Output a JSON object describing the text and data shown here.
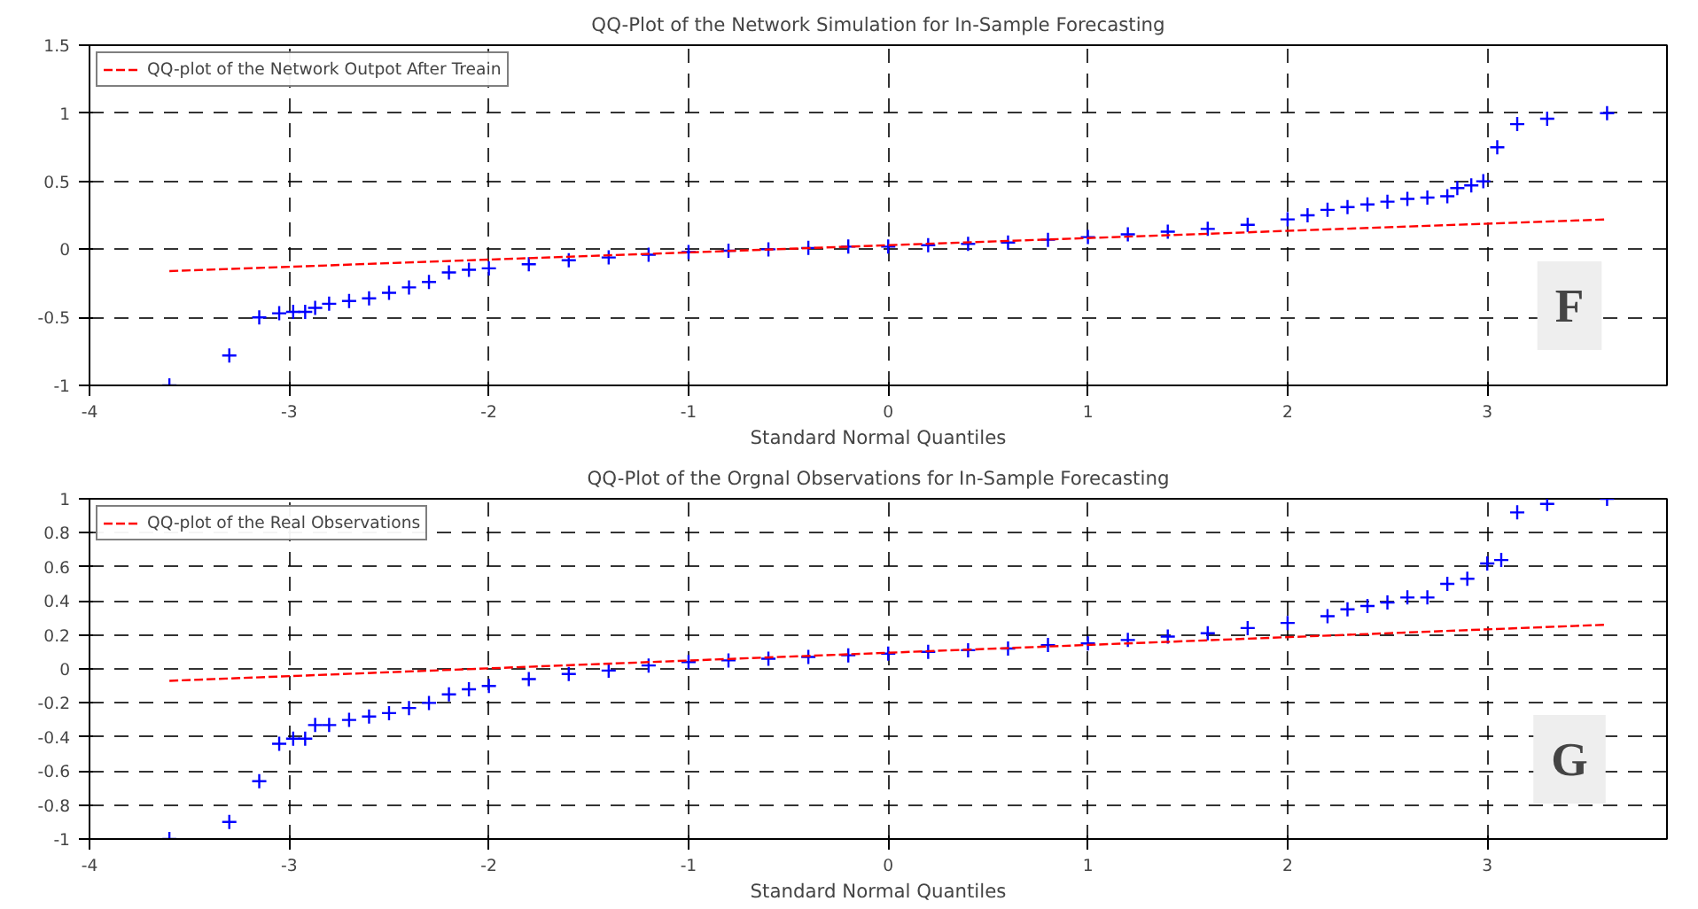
{
  "chart_data": [
    {
      "type": "scatter",
      "title": "QQ-Plot of the Network Simulation for In-Sample Forecasting",
      "xlabel": "Standard Normal Quantiles",
      "xlim": [
        -4,
        3.9
      ],
      "xticks": [
        -4,
        -3,
        -2,
        -1,
        0,
        1,
        2,
        3
      ],
      "ylim": [
        -1,
        1.5
      ],
      "yticks": [
        -1,
        -0.5,
        0,
        0.5,
        1,
        1.5
      ],
      "grid": true,
      "legend": "top left",
      "annotations": [
        "F"
      ],
      "series": [
        {
          "marker": "cross",
          "color": "#0000ff",
          "x": [
            -3.6,
            -3.3,
            -3.15,
            -3.05,
            -2.98,
            -2.92,
            -2.87,
            -2.8,
            -2.7,
            -2.6,
            -2.5,
            -2.4,
            -2.3,
            -2.2,
            -2.1,
            -2.0,
            -1.8,
            -1.6,
            -1.4,
            -1.2,
            -1.0,
            -0.8,
            -0.6,
            -0.4,
            -0.2,
            0,
            0.2,
            0.4,
            0.6,
            0.8,
            1.0,
            1.2,
            1.4,
            1.6,
            1.8,
            2.0,
            2.1,
            2.2,
            2.3,
            2.4,
            2.5,
            2.6,
            2.7,
            2.8,
            2.85,
            2.92,
            2.98,
            3.05,
            3.15,
            3.3,
            3.6
          ],
          "values": [
            -1.0,
            -0.78,
            -0.5,
            -0.47,
            -0.46,
            -0.46,
            -0.43,
            -0.4,
            -0.38,
            -0.36,
            -0.32,
            -0.28,
            -0.24,
            -0.17,
            -0.15,
            -0.14,
            -0.11,
            -0.08,
            -0.06,
            -0.04,
            -0.02,
            -0.01,
            0.0,
            0.01,
            0.02,
            0.02,
            0.03,
            0.04,
            0.05,
            0.07,
            0.09,
            0.11,
            0.13,
            0.15,
            0.18,
            0.22,
            0.25,
            0.29,
            0.31,
            0.33,
            0.35,
            0.37,
            0.38,
            0.39,
            0.45,
            0.47,
            0.5,
            0.75,
            0.92,
            0.96,
            1.0
          ]
        },
        {
          "type": "line",
          "name": "QQ-plot of the Network Outpot After Treain",
          "color": "#ff0000",
          "line_style": "dashed",
          "x": [
            -3.6,
            3.6
          ],
          "values": [
            -0.16,
            0.22
          ]
        }
      ]
    },
    {
      "type": "scatter",
      "title": "QQ-Plot of the Orgnal Observations for In-Sample Forecasting",
      "xlabel": "Standard Normal Quantiles",
      "xlim": [
        -4,
        3.9
      ],
      "xticks": [
        -4,
        -3,
        -2,
        -1,
        0,
        1,
        2,
        3
      ],
      "ylim": [
        -1,
        1
      ],
      "yticks": [
        -1,
        -0.8,
        -0.6,
        -0.4,
        -0.2,
        0,
        0.2,
        0.4,
        0.6,
        0.8,
        1
      ],
      "grid": true,
      "legend": "top left",
      "annotations": [
        "G"
      ],
      "series": [
        {
          "marker": "cross",
          "color": "#0000ff",
          "x": [
            -3.6,
            -3.3,
            -3.15,
            -3.05,
            -2.98,
            -2.92,
            -2.87,
            -2.8,
            -2.7,
            -2.6,
            -2.5,
            -2.4,
            -2.3,
            -2.2,
            -2.1,
            -2.0,
            -1.8,
            -1.6,
            -1.4,
            -1.2,
            -1.0,
            -0.8,
            -0.6,
            -0.4,
            -0.2,
            0,
            0.2,
            0.4,
            0.6,
            0.8,
            1.0,
            1.2,
            1.4,
            1.6,
            1.8,
            2.0,
            2.2,
            2.3,
            2.4,
            2.5,
            2.6,
            2.7,
            2.8,
            2.9,
            3.0,
            3.07,
            3.15,
            3.3,
            3.6
          ],
          "values": [
            -1.0,
            -0.9,
            -0.66,
            -0.44,
            -0.41,
            -0.41,
            -0.33,
            -0.33,
            -0.3,
            -0.28,
            -0.26,
            -0.23,
            -0.2,
            -0.15,
            -0.12,
            -0.1,
            -0.06,
            -0.03,
            -0.01,
            0.02,
            0.04,
            0.05,
            0.06,
            0.07,
            0.08,
            0.09,
            0.1,
            0.11,
            0.12,
            0.14,
            0.15,
            0.17,
            0.19,
            0.21,
            0.24,
            0.27,
            0.31,
            0.35,
            0.37,
            0.39,
            0.42,
            0.42,
            0.5,
            0.53,
            0.62,
            0.64,
            0.92,
            0.97,
            1.0
          ]
        },
        {
          "type": "line",
          "name": "QQ-plot of the Real Observations",
          "color": "#ff0000",
          "line_style": "dashed",
          "x": [
            -3.6,
            3.6
          ],
          "values": [
            -0.07,
            0.26
          ]
        }
      ]
    }
  ]
}
